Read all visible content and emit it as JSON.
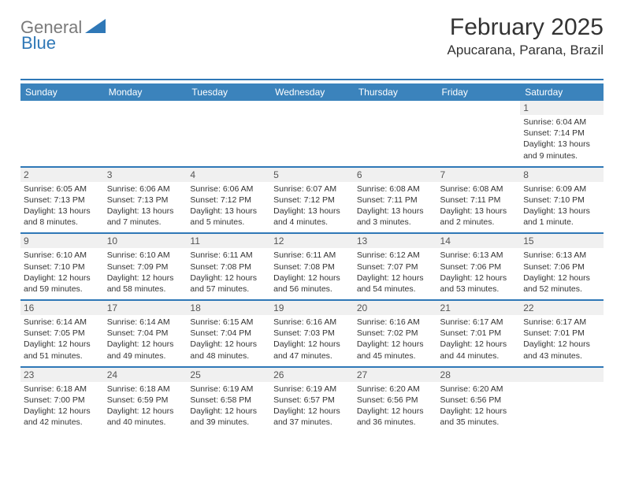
{
  "logo": {
    "text1": "General",
    "text2": "Blue"
  },
  "title": "February 2025",
  "location": "Apucarana, Parana, Brazil",
  "colors": {
    "accent": "#2f78b7",
    "header_bg": "#3b83bc",
    "daynum_bg": "#f0f0f0",
    "text": "#333333"
  },
  "day_headers": [
    "Sunday",
    "Monday",
    "Tuesday",
    "Wednesday",
    "Thursday",
    "Friday",
    "Saturday"
  ],
  "weeks": [
    [
      {
        "blank": true
      },
      {
        "blank": true
      },
      {
        "blank": true
      },
      {
        "blank": true
      },
      {
        "blank": true
      },
      {
        "blank": true
      },
      {
        "n": "1",
        "sunrise": "Sunrise: 6:04 AM",
        "sunset": "Sunset: 7:14 PM",
        "day1": "Daylight: 13 hours",
        "day2": "and 9 minutes."
      }
    ],
    [
      {
        "n": "2",
        "sunrise": "Sunrise: 6:05 AM",
        "sunset": "Sunset: 7:13 PM",
        "day1": "Daylight: 13 hours",
        "day2": "and 8 minutes."
      },
      {
        "n": "3",
        "sunrise": "Sunrise: 6:06 AM",
        "sunset": "Sunset: 7:13 PM",
        "day1": "Daylight: 13 hours",
        "day2": "and 7 minutes."
      },
      {
        "n": "4",
        "sunrise": "Sunrise: 6:06 AM",
        "sunset": "Sunset: 7:12 PM",
        "day1": "Daylight: 13 hours",
        "day2": "and 5 minutes."
      },
      {
        "n": "5",
        "sunrise": "Sunrise: 6:07 AM",
        "sunset": "Sunset: 7:12 PM",
        "day1": "Daylight: 13 hours",
        "day2": "and 4 minutes."
      },
      {
        "n": "6",
        "sunrise": "Sunrise: 6:08 AM",
        "sunset": "Sunset: 7:11 PM",
        "day1": "Daylight: 13 hours",
        "day2": "and 3 minutes."
      },
      {
        "n": "7",
        "sunrise": "Sunrise: 6:08 AM",
        "sunset": "Sunset: 7:11 PM",
        "day1": "Daylight: 13 hours",
        "day2": "and 2 minutes."
      },
      {
        "n": "8",
        "sunrise": "Sunrise: 6:09 AM",
        "sunset": "Sunset: 7:10 PM",
        "day1": "Daylight: 13 hours",
        "day2": "and 1 minute."
      }
    ],
    [
      {
        "n": "9",
        "sunrise": "Sunrise: 6:10 AM",
        "sunset": "Sunset: 7:10 PM",
        "day1": "Daylight: 12 hours",
        "day2": "and 59 minutes."
      },
      {
        "n": "10",
        "sunrise": "Sunrise: 6:10 AM",
        "sunset": "Sunset: 7:09 PM",
        "day1": "Daylight: 12 hours",
        "day2": "and 58 minutes."
      },
      {
        "n": "11",
        "sunrise": "Sunrise: 6:11 AM",
        "sunset": "Sunset: 7:08 PM",
        "day1": "Daylight: 12 hours",
        "day2": "and 57 minutes."
      },
      {
        "n": "12",
        "sunrise": "Sunrise: 6:11 AM",
        "sunset": "Sunset: 7:08 PM",
        "day1": "Daylight: 12 hours",
        "day2": "and 56 minutes."
      },
      {
        "n": "13",
        "sunrise": "Sunrise: 6:12 AM",
        "sunset": "Sunset: 7:07 PM",
        "day1": "Daylight: 12 hours",
        "day2": "and 54 minutes."
      },
      {
        "n": "14",
        "sunrise": "Sunrise: 6:13 AM",
        "sunset": "Sunset: 7:06 PM",
        "day1": "Daylight: 12 hours",
        "day2": "and 53 minutes."
      },
      {
        "n": "15",
        "sunrise": "Sunrise: 6:13 AM",
        "sunset": "Sunset: 7:06 PM",
        "day1": "Daylight: 12 hours",
        "day2": "and 52 minutes."
      }
    ],
    [
      {
        "n": "16",
        "sunrise": "Sunrise: 6:14 AM",
        "sunset": "Sunset: 7:05 PM",
        "day1": "Daylight: 12 hours",
        "day2": "and 51 minutes."
      },
      {
        "n": "17",
        "sunrise": "Sunrise: 6:14 AM",
        "sunset": "Sunset: 7:04 PM",
        "day1": "Daylight: 12 hours",
        "day2": "and 49 minutes."
      },
      {
        "n": "18",
        "sunrise": "Sunrise: 6:15 AM",
        "sunset": "Sunset: 7:04 PM",
        "day1": "Daylight: 12 hours",
        "day2": "and 48 minutes."
      },
      {
        "n": "19",
        "sunrise": "Sunrise: 6:16 AM",
        "sunset": "Sunset: 7:03 PM",
        "day1": "Daylight: 12 hours",
        "day2": "and 47 minutes."
      },
      {
        "n": "20",
        "sunrise": "Sunrise: 6:16 AM",
        "sunset": "Sunset: 7:02 PM",
        "day1": "Daylight: 12 hours",
        "day2": "and 45 minutes."
      },
      {
        "n": "21",
        "sunrise": "Sunrise: 6:17 AM",
        "sunset": "Sunset: 7:01 PM",
        "day1": "Daylight: 12 hours",
        "day2": "and 44 minutes."
      },
      {
        "n": "22",
        "sunrise": "Sunrise: 6:17 AM",
        "sunset": "Sunset: 7:01 PM",
        "day1": "Daylight: 12 hours",
        "day2": "and 43 minutes."
      }
    ],
    [
      {
        "n": "23",
        "sunrise": "Sunrise: 6:18 AM",
        "sunset": "Sunset: 7:00 PM",
        "day1": "Daylight: 12 hours",
        "day2": "and 42 minutes."
      },
      {
        "n": "24",
        "sunrise": "Sunrise: 6:18 AM",
        "sunset": "Sunset: 6:59 PM",
        "day1": "Daylight: 12 hours",
        "day2": "and 40 minutes."
      },
      {
        "n": "25",
        "sunrise": "Sunrise: 6:19 AM",
        "sunset": "Sunset: 6:58 PM",
        "day1": "Daylight: 12 hours",
        "day2": "and 39 minutes."
      },
      {
        "n": "26",
        "sunrise": "Sunrise: 6:19 AM",
        "sunset": "Sunset: 6:57 PM",
        "day1": "Daylight: 12 hours",
        "day2": "and 37 minutes."
      },
      {
        "n": "27",
        "sunrise": "Sunrise: 6:20 AM",
        "sunset": "Sunset: 6:56 PM",
        "day1": "Daylight: 12 hours",
        "day2": "and 36 minutes."
      },
      {
        "n": "28",
        "sunrise": "Sunrise: 6:20 AM",
        "sunset": "Sunset: 6:56 PM",
        "day1": "Daylight: 12 hours",
        "day2": "and 35 minutes."
      },
      {
        "blank": true
      }
    ]
  ]
}
